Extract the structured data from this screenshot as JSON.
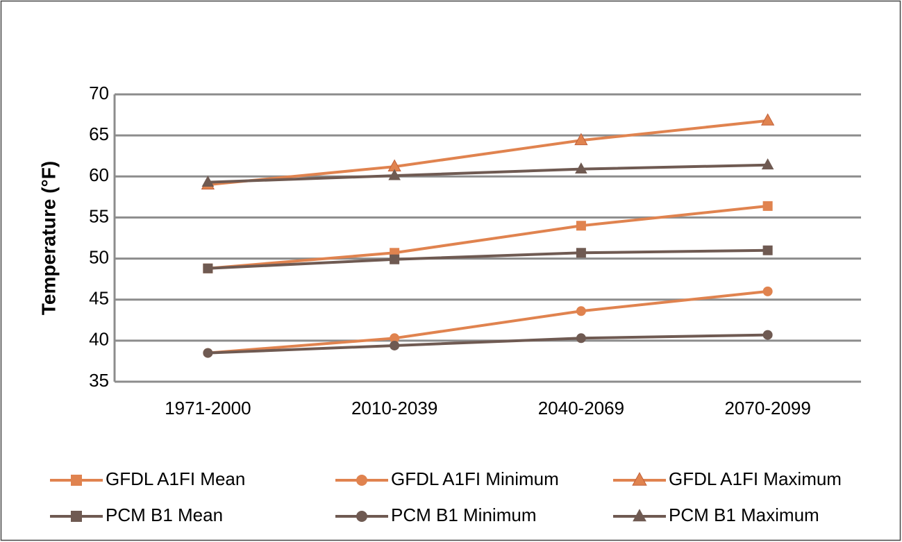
{
  "chart_data": {
    "type": "line",
    "y_label": "Temperature (°F)",
    "categories": [
      "1971-2000",
      "2010-2039",
      "2040-2069",
      "2070-2099"
    ],
    "series": [
      {
        "name": "GFDL A1FI Mean",
        "color": "#e0834f",
        "marker": "square",
        "values": [
          48.8,
          50.7,
          54.0,
          56.4
        ]
      },
      {
        "name": "GFDL A1FI Minimum",
        "color": "#e0834f",
        "marker": "circle",
        "values": [
          38.5,
          40.3,
          43.6,
          46.0
        ]
      },
      {
        "name": "GFDL A1FI Maximum",
        "color": "#e0834f",
        "marker": "triangle",
        "values": [
          59.0,
          61.2,
          64.4,
          66.8
        ]
      },
      {
        "name": "PCM B1 Mean",
        "color": "#6f5a52",
        "marker": "square",
        "values": [
          48.8,
          49.9,
          50.7,
          51.0
        ]
      },
      {
        "name": "PCM B1 Minimum",
        "color": "#6f5a52",
        "marker": "circle",
        "values": [
          38.5,
          39.4,
          40.3,
          40.7
        ]
      },
      {
        "name": "PCM B1 Maximum",
        "color": "#6f5a52",
        "marker": "triangle",
        "values": [
          59.3,
          60.1,
          60.9,
          61.4
        ]
      }
    ],
    "ylim": [
      35,
      70
    ],
    "yticks": [
      35,
      40,
      45,
      50,
      55,
      60,
      65,
      70
    ],
    "grid": true,
    "legend": "bottom"
  }
}
